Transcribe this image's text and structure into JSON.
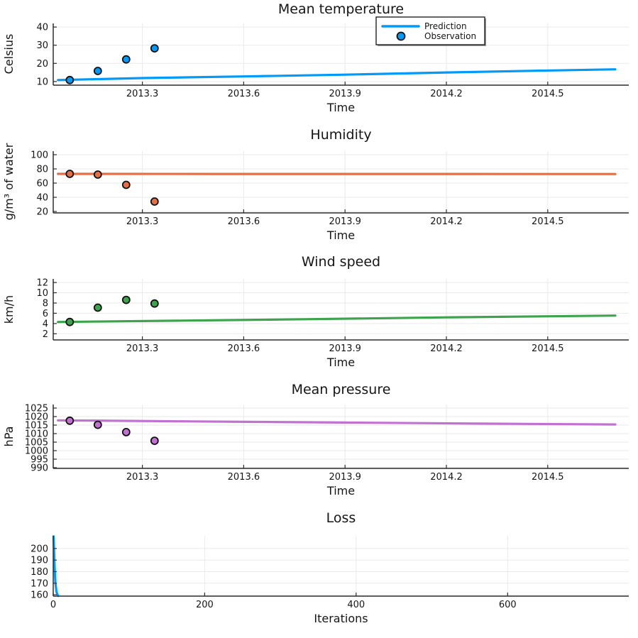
{
  "figure": {
    "background": "#ffffff",
    "text_color": "#151515",
    "grid_color": "#eaeaea",
    "spine_color": "#2c2c2c"
  },
  "chart_data": [
    {
      "id": "mean-temperature",
      "type": "line+scatter",
      "title": "Mean temperature",
      "xlabel": "Time",
      "ylabel": "Celsius",
      "series_color": "#009af9",
      "xlim": [
        2013.036,
        2014.74
      ],
      "ylim": [
        8,
        42
      ],
      "xticks": [
        2013.3,
        2013.6,
        2013.9,
        2014.2,
        2014.5
      ],
      "xtick_labels": [
        "2013.3",
        "2013.6",
        "2013.9",
        "2014.2",
        "2014.5"
      ],
      "yticks": [
        10,
        20,
        30,
        40
      ],
      "ytick_labels": [
        "10",
        "20",
        "30",
        "40"
      ],
      "grid": true,
      "legend": {
        "visible": true,
        "position": "top",
        "entries": [
          {
            "label": "Prediction",
            "glyph": "line"
          },
          {
            "label": "Observation",
            "glyph": "circle"
          }
        ]
      },
      "prediction": {
        "x": [
          2013.05,
          2013.3,
          2013.6,
          2013.9,
          2014.2,
          2014.45,
          2014.7
        ],
        "y": [
          10.8,
          11.9,
          12.8,
          13.8,
          15.0,
          15.9,
          16.7
        ]
      },
      "observation": {
        "x": [
          2013.085,
          2013.168,
          2013.252,
          2013.336
        ],
        "y": [
          10.8,
          15.8,
          22.2,
          28.3
        ]
      }
    },
    {
      "id": "humidity",
      "type": "line+scatter",
      "title": "Humidity",
      "xlabel": "Time",
      "ylabel": "g/m³ of water",
      "series_color": "#e26f46",
      "xlim": [
        2013.036,
        2014.74
      ],
      "ylim": [
        18,
        105
      ],
      "xticks": [
        2013.3,
        2013.6,
        2013.9,
        2014.2,
        2014.5
      ],
      "xtick_labels": [
        "2013.3",
        "2013.6",
        "2013.9",
        "2014.2",
        "2014.5"
      ],
      "yticks": [
        20,
        40,
        60,
        80,
        100
      ],
      "ytick_labels": [
        "20",
        "40",
        "60",
        "80",
        "100"
      ],
      "grid": true,
      "legend": {
        "visible": false
      },
      "prediction": {
        "x": [
          2013.05,
          2013.5,
          2014.0,
          2014.7
        ],
        "y": [
          73.0,
          72.9,
          72.9,
          72.8
        ]
      },
      "observation": {
        "x": [
          2013.085,
          2013.168,
          2013.252,
          2013.336
        ],
        "y": [
          73,
          72,
          57.5,
          34
        ]
      }
    },
    {
      "id": "wind-speed",
      "type": "line+scatter",
      "title": "Wind speed",
      "xlabel": "Time",
      "ylabel": "km/h",
      "series_color": "#3da44d",
      "xlim": [
        2013.036,
        2014.74
      ],
      "ylim": [
        0.8,
        12.7
      ],
      "xticks": [
        2013.3,
        2013.6,
        2013.9,
        2014.2,
        2014.5
      ],
      "xtick_labels": [
        "2013.3",
        "2013.6",
        "2013.9",
        "2014.2",
        "2014.5"
      ],
      "yticks": [
        2,
        4,
        6,
        8,
        10,
        12
      ],
      "ytick_labels": [
        "2",
        "4",
        "6",
        "8",
        "10",
        "12"
      ],
      "grid": true,
      "legend": {
        "visible": false
      },
      "prediction": {
        "x": [
          2013.05,
          2013.4,
          2013.8,
          2014.2,
          2014.7
        ],
        "y": [
          4.3,
          4.55,
          4.85,
          5.2,
          5.55
        ]
      },
      "observation": {
        "x": [
          2013.085,
          2013.168,
          2013.252,
          2013.336
        ],
        "y": [
          4.3,
          7.1,
          8.6,
          7.9
        ]
      }
    },
    {
      "id": "mean-pressure",
      "type": "line+scatter",
      "title": "Mean pressure",
      "xlabel": "Time",
      "ylabel": "hPa",
      "series_color": "#c271d2",
      "xlim": [
        2013.036,
        2014.74
      ],
      "ylim": [
        989.6,
        1027.1
      ],
      "xticks": [
        2013.3,
        2013.6,
        2013.9,
        2014.2,
        2014.5
      ],
      "xtick_labels": [
        "2013.3",
        "2013.6",
        "2013.9",
        "2014.2",
        "2014.5"
      ],
      "yticks": [
        990,
        995,
        1000,
        1005,
        1010,
        1015,
        1020,
        1025
      ],
      "ytick_labels": [
        "990",
        "995",
        "1000",
        "1005",
        "1010",
        "1015",
        "1020",
        "1025"
      ],
      "grid": true,
      "legend": {
        "visible": false
      },
      "prediction": {
        "x": [
          2013.05,
          2013.45,
          2013.9,
          2014.3,
          2014.7
        ],
        "y": [
          1017.8,
          1017.2,
          1016.5,
          1015.9,
          1015.4
        ]
      },
      "observation": {
        "x": [
          2013.085,
          2013.168,
          2013.252,
          2013.336
        ],
        "y": [
          1017.6,
          1015.2,
          1010.9,
          1005.8
        ]
      }
    },
    {
      "id": "loss",
      "type": "line",
      "title": "Loss",
      "xlabel": "Iterations",
      "ylabel": "",
      "series_color": "#009af9",
      "xlim": [
        0,
        760
      ],
      "ylim": [
        158.8,
        211
      ],
      "xticks": [
        0,
        200,
        400,
        600
      ],
      "xtick_labels": [
        "0",
        "200",
        "400",
        "600"
      ],
      "yticks": [
        160,
        170,
        180,
        190,
        200
      ],
      "ytick_labels": [
        "160",
        "170",
        "180",
        "190",
        "200"
      ],
      "grid": true,
      "legend": {
        "visible": false
      },
      "prediction": {
        "x": [
          0.5,
          1,
          1.8,
          2.8,
          4.2,
          6.5
        ],
        "y": [
          210.5,
          200,
          184,
          171,
          162.5,
          159
        ]
      },
      "observation": null
    }
  ]
}
